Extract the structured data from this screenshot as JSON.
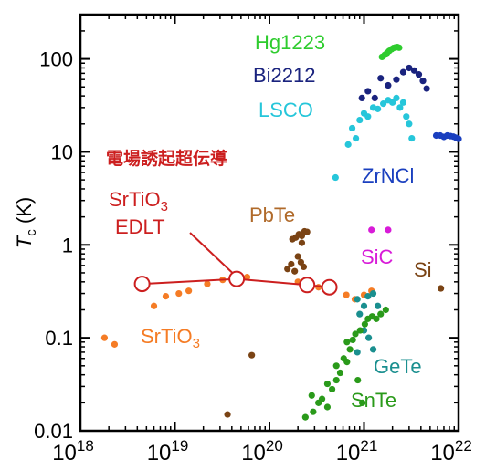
{
  "chart_data": {
    "type": "scatter",
    "x_scale": "log",
    "y_scale": "log",
    "xlim": [
      1e+18,
      1e+22
    ],
    "ylim": [
      0.01,
      300
    ],
    "grid": false,
    "ylabel_main": "T",
    "ylabel_sub": "c",
    "ylabel_unit": " (K)",
    "x_ticks": [
      {
        "value": 1e+18,
        "base": "10",
        "exp": "18"
      },
      {
        "value": 1e+19,
        "base": "10",
        "exp": "19"
      },
      {
        "value": 1e+20,
        "base": "10",
        "exp": "20"
      },
      {
        "value": 1e+21,
        "base": "10",
        "exp": "21"
      },
      {
        "value": 1e+22,
        "base": "10",
        "exp": "22"
      }
    ],
    "y_ticks": [
      {
        "value": 100,
        "label": "100"
      },
      {
        "value": 10,
        "label": "10"
      },
      {
        "value": 1,
        "label": "1"
      },
      {
        "value": 0.1,
        "label": "0.1"
      },
      {
        "value": 0.01,
        "label": "0.01"
      }
    ],
    "annotation_title": {
      "text": "電場誘起超伝導",
      "color": "#cc1f1f"
    },
    "series": [
      {
        "name": "Hg1223",
        "color": "#2ecc2e",
        "points": [
          [
            1.55e+21,
            105
          ],
          [
            1.65e+21,
            110
          ],
          [
            1.75e+21,
            116
          ],
          [
            1.85e+21,
            122
          ],
          [
            1.95e+21,
            127
          ],
          [
            2.05e+21,
            131
          ],
          [
            2.15e+21,
            133
          ],
          [
            2.25e+21,
            134
          ],
          [
            2.35e+21,
            132
          ]
        ]
      },
      {
        "name": "Bi2212",
        "color": "#1a237e",
        "points": [
          [
            9.5e+20,
            38
          ],
          [
            1.1e+21,
            45
          ],
          [
            1.3e+21,
            38
          ],
          [
            1.5e+21,
            62
          ],
          [
            1.8e+21,
            52
          ],
          [
            2.2e+21,
            60
          ],
          [
            2.6e+21,
            72
          ],
          [
            3e+21,
            80
          ],
          [
            3.4e+21,
            75
          ],
          [
            3.8e+21,
            68
          ],
          [
            4.2e+21,
            58
          ],
          [
            4.6e+21,
            48
          ]
        ]
      },
      {
        "name": "LSCO",
        "color": "#26c6da",
        "points": [
          [
            7.5e+20,
            18
          ],
          [
            8.2e+20,
            14
          ],
          [
            9e+20,
            22
          ],
          [
            1e+21,
            26
          ],
          [
            1.1e+21,
            24
          ],
          [
            1.25e+21,
            30
          ],
          [
            1.4e+21,
            29
          ],
          [
            1.6e+21,
            33
          ],
          [
            1.8e+21,
            36
          ],
          [
            2e+21,
            34
          ],
          [
            2.2e+21,
            38
          ],
          [
            2.4e+21,
            30
          ],
          [
            2.6e+21,
            34
          ],
          [
            2.8e+21,
            24
          ],
          [
            3e+21,
            20
          ],
          [
            3.2e+21,
            14
          ],
          [
            6.8e+20,
            12
          ],
          [
            5e+20,
            5.3
          ]
        ]
      },
      {
        "name": "ZrNCl",
        "color": "#1a3fbf",
        "points": [
          [
            5.8e+21,
            15
          ],
          [
            6.4e+21,
            15
          ],
          [
            7e+21,
            14.5
          ],
          [
            7.6e+21,
            15
          ],
          [
            8.2e+21,
            14.8
          ],
          [
            8.8e+21,
            14.6
          ],
          [
            9.4e+21,
            14.2
          ],
          [
            1e+22,
            13.8
          ]
        ]
      },
      {
        "name": "PbTe",
        "color": "#7a4314",
        "points": [
          [
            1.55e+20,
            0.55
          ],
          [
            1.7e+20,
            0.62
          ],
          [
            1.85e+20,
            0.52
          ],
          [
            2e+20,
            0.75
          ],
          [
            2.15e+20,
            0.65
          ],
          [
            2.3e+20,
            0.58
          ],
          [
            1.75e+20,
            1.15
          ],
          [
            1.9e+20,
            1.2
          ],
          [
            2.05e+20,
            1.3
          ],
          [
            2.2e+20,
            1.25
          ],
          [
            2.35e+20,
            1.4
          ],
          [
            2.5e+20,
            1.38
          ],
          [
            2.2e+20,
            1.05
          ],
          [
            3.6e+19,
            0.015
          ],
          [
            6.5e+19,
            0.065
          ]
        ]
      },
      {
        "name": "SiC",
        "color": "#d81bd8",
        "points": [
          [
            1.2e+21,
            1.45
          ],
          [
            1.8e+21,
            1.45
          ]
        ]
      },
      {
        "name": "Si",
        "color": "#7a4314",
        "points": [
          [
            6.5e+21,
            0.34
          ]
        ]
      },
      {
        "name": "SrTiO3",
        "color": "#f57c25",
        "points": [
          [
            1.8e+18,
            0.1
          ],
          [
            2.3e+18,
            0.085
          ],
          [
            6e+18,
            0.22
          ],
          [
            8e+18,
            0.28
          ],
          [
            1.1e+19,
            0.3
          ],
          [
            1.4e+19,
            0.32
          ],
          [
            2.2e+19,
            0.38
          ],
          [
            3.2e+19,
            0.42
          ],
          [
            4.3e+19,
            0.46
          ],
          [
            5.8e+19,
            0.45
          ],
          [
            2e+20,
            0.4
          ],
          [
            3.3e+20,
            0.35
          ],
          [
            4.5e+20,
            0.34
          ],
          [
            6.5e+20,
            0.29
          ],
          [
            8e+20,
            0.26
          ],
          [
            1e+21,
            0.29
          ],
          [
            1.2e+21,
            0.32
          ]
        ]
      },
      {
        "name": "GeTe",
        "color": "#1a8f8f",
        "points": [
          [
            8.5e+20,
            0.26
          ],
          [
            1e+21,
            0.22
          ],
          [
            1.1e+21,
            0.28
          ],
          [
            1.25e+21,
            0.3
          ],
          [
            1.4e+21,
            0.22
          ],
          [
            9e+20,
            0.18
          ],
          [
            1e+21,
            0.12
          ],
          [
            1.12e+21,
            0.1
          ],
          [
            1.25e+21,
            0.075
          ],
          [
            8.5e+20,
            0.07
          ]
        ]
      },
      {
        "name": "SnTe",
        "color": "#2a9a1a",
        "points": [
          [
            2.4e+20,
            0.014
          ],
          [
            2.9e+20,
            0.016
          ],
          [
            3.3e+20,
            0.02
          ],
          [
            2.8e+20,
            0.024
          ],
          [
            3.6e+20,
            0.022
          ],
          [
            4.1e+20,
            0.018
          ],
          [
            4.6e+20,
            0.028
          ],
          [
            4.1e+20,
            0.032
          ],
          [
            5.1e+20,
            0.035
          ],
          [
            5.6e+20,
            0.042
          ],
          [
            5.1e+20,
            0.05
          ],
          [
            6.1e+20,
            0.06
          ],
          [
            6.6e+20,
            0.055
          ],
          [
            7.1e+20,
            0.075
          ],
          [
            6.6e+20,
            0.09
          ],
          [
            7.6e+20,
            0.095
          ],
          [
            8.1e+20,
            0.11
          ],
          [
            9.1e+20,
            0.12
          ],
          [
            1.02e+21,
            0.14
          ],
          [
            1.1e+21,
            0.16
          ],
          [
            1.22e+21,
            0.17
          ],
          [
            1.35e+21,
            0.16
          ],
          [
            1.5e+21,
            0.18
          ],
          [
            1.7e+21,
            0.2
          ],
          [
            8.6e+20,
            0.035
          ],
          [
            9.6e+20,
            0.02
          ]
        ]
      }
    ],
    "edlt_series": {
      "label_line1": "SrTiO",
      "label_sub": "3",
      "label_line2": "EDLT",
      "color": "#cc1f1f",
      "points": [
        [
          4.5e+18,
          0.38
        ],
        [
          4.5e+19,
          0.43
        ],
        [
          2.5e+20,
          0.37
        ],
        [
          4.3e+20,
          0.35
        ]
      ]
    },
    "labels": [
      {
        "text": "Hg1223",
        "color": "#2ecc2e",
        "anchor": "Hg1223"
      },
      {
        "text": "Bi2212",
        "color": "#1a237e",
        "anchor": "Bi2212"
      },
      {
        "text": "LSCO",
        "color": "#26c6da",
        "anchor": "LSCO"
      },
      {
        "text": "ZrNCl",
        "color": "#1a3fbf",
        "anchor": "ZrNCl"
      },
      {
        "text": "PbTe",
        "color": "#b06a2a",
        "anchor": "PbTe"
      },
      {
        "text": "SiC",
        "color": "#d81bd8",
        "anchor": "SiC"
      },
      {
        "text": "Si",
        "color": "#7a4314",
        "anchor": "Si"
      },
      {
        "text": "GeTe",
        "color": "#1a8f8f",
        "anchor": "GeTe"
      },
      {
        "text": "SnTe",
        "color": "#2a9a1a",
        "anchor": "SnTe"
      }
    ],
    "srtio3_label": {
      "main": "SrTiO",
      "sub": "3",
      "color": "#f57c25"
    }
  }
}
